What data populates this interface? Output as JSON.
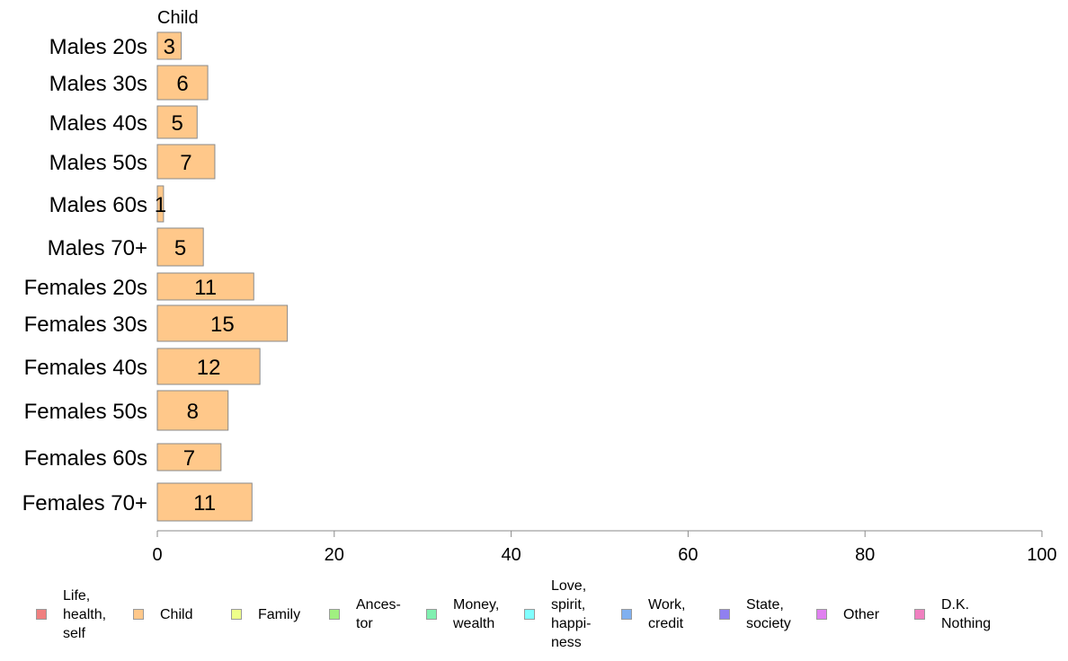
{
  "chart_data": {
    "type": "bar",
    "orientation": "horizontal",
    "title": "Child",
    "categories": [
      "Males 20s",
      "Males 30s",
      "Males 40s",
      "Males 50s",
      "Males 60s",
      "Males 70+",
      "Females 20s",
      "Females 30s",
      "Females 40s",
      "Females 50s",
      "Females 60s",
      "Females 70+"
    ],
    "series": [
      {
        "name": "Child",
        "values": [
          2.7,
          5.7,
          4.5,
          6.5,
          0.7,
          5.2,
          10.9,
          14.7,
          11.6,
          8.0,
          7.2,
          10.7
        ],
        "labels": [
          "3",
          "6",
          "5",
          "7",
          "1",
          "5",
          "11",
          "15",
          "12",
          "8",
          "7",
          "11"
        ]
      }
    ],
    "xlim": [
      0,
      100
    ],
    "xticks": [
      0,
      20,
      40,
      60,
      80,
      100
    ],
    "grid": false,
    "legend_position": "bottom",
    "legend": [
      {
        "label": "Life,\nhealth,\nself",
        "color": "#f08080"
      },
      {
        "label": "Child",
        "color": "#ffc88a"
      },
      {
        "label": "Family",
        "color": "#eeff8a"
      },
      {
        "label": "Ances-\ntor",
        "color": "#a0f080"
      },
      {
        "label": "Money,\nwealth",
        "color": "#80f0b0"
      },
      {
        "label": "Love,\nspirit,\nhappi-\nness",
        "color": "#80ffff"
      },
      {
        "label": "Work,\ncredit",
        "color": "#80b0f0"
      },
      {
        "label": "State,\nsociety",
        "color": "#9080f0"
      },
      {
        "label": "Other",
        "color": "#e080f0"
      },
      {
        "label": "D.K.\nNothing",
        "color": "#f080c0"
      }
    ],
    "bar_color": "#ffc88a",
    "bar_edge_color": "#8a8a8a",
    "axis_color": "#8a8a8a"
  }
}
